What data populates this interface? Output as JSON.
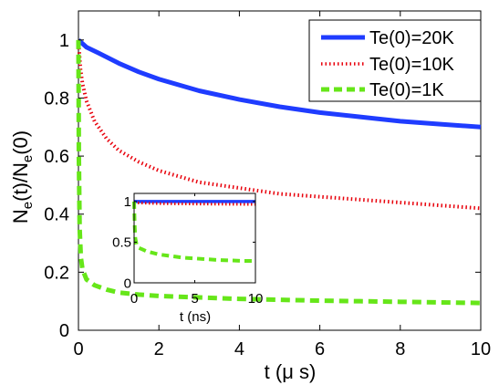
{
  "chart_data": [
    {
      "type": "line",
      "xlabel": "t (μ s)",
      "ylabel": {
        "main": "N",
        "sub1": "e",
        "mid": "(t)/N",
        "sub2": "e",
        "end": "(0)"
      },
      "xlim": [
        0,
        10
      ],
      "ylim": [
        0,
        1.1
      ],
      "xticks": [
        0,
        2,
        4,
        6,
        8,
        10
      ],
      "yticks": [
        0,
        0.2,
        0.4,
        0.6,
        0.8,
        1
      ],
      "grid": false,
      "legend": "top-right",
      "series": [
        {
          "name": "Te(0)=20K",
          "color": "#1f3cff",
          "style": "solid",
          "x": [
            0,
            0.2,
            0.5,
            1,
            1.5,
            2,
            3,
            4,
            5,
            6,
            7,
            8,
            9,
            10
          ],
          "y": [
            1.0,
            0.975,
            0.955,
            0.92,
            0.89,
            0.865,
            0.825,
            0.795,
            0.77,
            0.75,
            0.735,
            0.72,
            0.71,
            0.7
          ]
        },
        {
          "name": "Te(0)=10K",
          "color": "#e8000b",
          "style": "dotted",
          "x": [
            0,
            0.05,
            0.1,
            0.2,
            0.4,
            0.7,
            1,
            1.5,
            2,
            3,
            4,
            5,
            6,
            7,
            8,
            9,
            10
          ],
          "y": [
            1.0,
            0.9,
            0.85,
            0.79,
            0.72,
            0.66,
            0.62,
            0.58,
            0.55,
            0.51,
            0.49,
            0.47,
            0.46,
            0.45,
            0.44,
            0.43,
            0.42
          ]
        },
        {
          "name": "Te(0)=1K",
          "color": "#66e619",
          "style": "dashed",
          "x": [
            0,
            0.01,
            0.03,
            0.06,
            0.1,
            0.2,
            0.4,
            0.7,
            1,
            1.5,
            2,
            3,
            4,
            5,
            6,
            7,
            8,
            9,
            10
          ],
          "y": [
            1.0,
            0.6,
            0.35,
            0.25,
            0.21,
            0.175,
            0.155,
            0.14,
            0.13,
            0.123,
            0.118,
            0.113,
            0.108,
            0.105,
            0.102,
            0.1,
            0.098,
            0.096,
            0.094
          ]
        }
      ]
    },
    {
      "type": "line",
      "xlabel": "t  (ns)",
      "ylabel": "",
      "xlim": [
        0,
        10
      ],
      "ylim": [
        0,
        1.1
      ],
      "xticks": [
        0,
        5,
        10
      ],
      "yticks": [
        0,
        0.5,
        1
      ],
      "grid": false,
      "series": [
        {
          "color": "#1f3cff",
          "style": "solid",
          "x": [
            0,
            10
          ],
          "y": [
            1.0,
            1.0
          ]
        },
        {
          "color": "#e8000b",
          "style": "dotted",
          "x": [
            0,
            2,
            5,
            10
          ],
          "y": [
            0.985,
            0.975,
            0.97,
            0.965
          ]
        },
        {
          "color": "#66e619",
          "style": "dashed",
          "x": [
            0,
            0.05,
            0.1,
            0.2,
            0.4,
            0.7,
            1,
            2,
            3,
            4,
            5,
            6,
            7,
            8,
            9,
            10
          ],
          "y": [
            1.0,
            0.7,
            0.55,
            0.47,
            0.43,
            0.41,
            0.39,
            0.35,
            0.33,
            0.31,
            0.3,
            0.29,
            0.28,
            0.275,
            0.27,
            0.27
          ]
        }
      ]
    }
  ]
}
